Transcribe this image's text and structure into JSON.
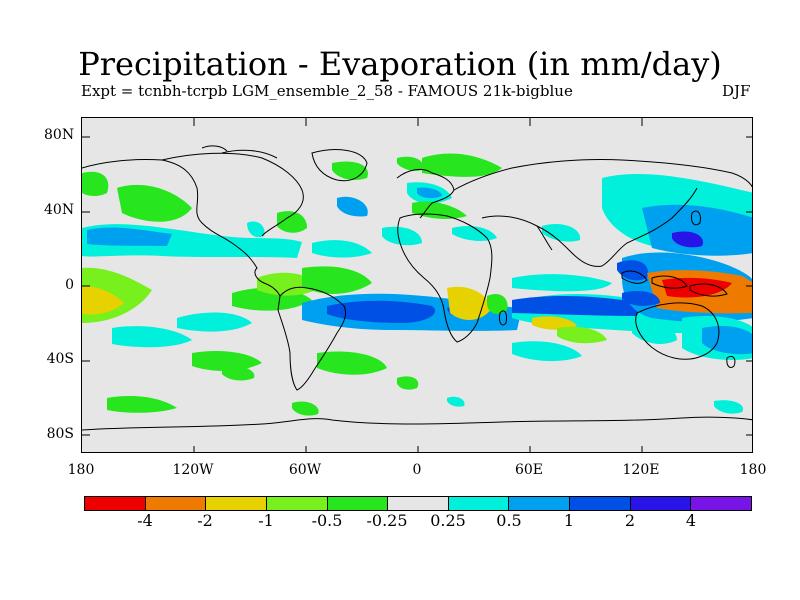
{
  "title": "Precipitation - Evaporation (in mm/day)",
  "subtitle_left": "Expt = tcnbh-tcrpb",
  "subtitle_center": "LGM_ensemble_2_58 - FAMOUS 21k-bigblue",
  "subtitle_right": "DJF",
  "y_ticks": [
    "80N",
    "40N",
    "0",
    "40S",
    "80S"
  ],
  "x_ticks": [
    "180",
    "120W",
    "60W",
    "0",
    "60E",
    "120E",
    "180"
  ],
  "colorbar": {
    "colors": [
      "#ee0000",
      "#ee7a00",
      "#e6d200",
      "#78f01e",
      "#28e61e",
      "#e6e6e6",
      "#00f0dc",
      "#00a0f0",
      "#0050e6",
      "#2814e6",
      "#7814e6"
    ],
    "labels": [
      "-4",
      "-2",
      "-1",
      "-0.5",
      "-0.25",
      "0.25",
      "0.5",
      "1",
      "2",
      "4"
    ]
  },
  "colors": {
    "ocean_background": "#e6e6e6",
    "coastline": "#000000"
  }
}
